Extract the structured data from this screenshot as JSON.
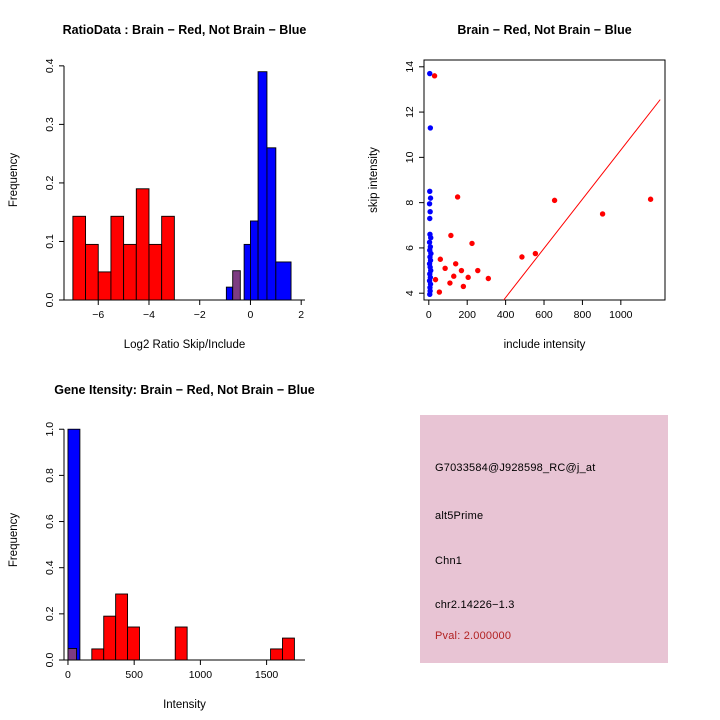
{
  "colors": {
    "red": "#ff0000",
    "blue": "#0000ff",
    "purple": "#7d3c82",
    "axis": "#000000",
    "info_box_bg": "#e8c4d4",
    "pval_text": "#b22222"
  },
  "chart_data": [
    {
      "type": "bar",
      "subtype": "histogram",
      "title": "RatioData : Brain − Red, Not Brain − Blue",
      "xlabel": "Log2 Ratio Skip/Include",
      "ylabel": "Frequency",
      "xlim": [
        -7.35,
        2.15
      ],
      "ylim": [
        0,
        0.41
      ],
      "xticks": [
        -6,
        -4,
        -2,
        0,
        2
      ],
      "xtick_labels": [
        "−6",
        "−4",
        "−2",
        "0",
        "2"
      ],
      "yticks": [
        0,
        0.1,
        0.2,
        0.3,
        0.4
      ],
      "ytick_labels": [
        "0.0",
        "0.1",
        "0.2",
        "0.3",
        "0.4"
      ],
      "grid": false,
      "legend": "none",
      "bars": [
        [
          -7.0,
          -6.5,
          0.143,
          "red"
        ],
        [
          -6.5,
          -6.0,
          0.095,
          "red"
        ],
        [
          -6.0,
          -5.5,
          0.048,
          "red"
        ],
        [
          -5.5,
          -5.0,
          0.143,
          "red"
        ],
        [
          -5.0,
          -4.5,
          0.095,
          "red"
        ],
        [
          -4.5,
          -4.0,
          0.19,
          "red"
        ],
        [
          -4.0,
          -3.5,
          0.095,
          "red"
        ],
        [
          -3.5,
          -3.0,
          0.143,
          "red"
        ],
        [
          -0.95,
          -0.7,
          0.022,
          "blue"
        ],
        [
          -0.7,
          -0.4,
          0.05,
          "purple"
        ],
        [
          -0.25,
          0.0,
          0.095,
          "blue"
        ],
        [
          0.0,
          0.3,
          0.135,
          "blue"
        ],
        [
          0.3,
          0.65,
          0.39,
          "blue"
        ],
        [
          0.65,
          1.0,
          0.26,
          "blue"
        ],
        [
          1.0,
          1.6,
          0.065,
          "blue"
        ]
      ]
    },
    {
      "type": "scatter",
      "title": "Brain − Red, Not Brain − Blue",
      "xlabel": "include intensity",
      "ylabel": "skip intensity",
      "xlim": [
        -25,
        1230
      ],
      "ylim": [
        3.7,
        14.3
      ],
      "xticks": [
        0,
        200,
        400,
        600,
        800,
        1000
      ],
      "xtick_labels": [
        "0",
        "200",
        "400",
        "600",
        "800",
        "1000"
      ],
      "yticks": [
        4,
        6,
        8,
        10,
        12,
        14
      ],
      "ytick_labels": [
        "4",
        "6",
        "8",
        "10",
        "12",
        "14"
      ],
      "grid": false,
      "box": true,
      "legend": "none",
      "series": [
        {
          "name": "Not Brain",
          "color": "blue",
          "points": [
            [
              5,
              13.7
            ],
            [
              8,
              11.3
            ],
            [
              5,
              8.5
            ],
            [
              9,
              8.2
            ],
            [
              4,
              7.95
            ],
            [
              7,
              7.6
            ],
            [
              5,
              7.3
            ],
            [
              6,
              6.6
            ],
            [
              10,
              6.45
            ],
            [
              4,
              6.25
            ],
            [
              8,
              6.05
            ],
            [
              5,
              5.9
            ],
            [
              11,
              5.75
            ],
            [
              6,
              5.6
            ],
            [
              9,
              5.45
            ],
            [
              4,
              5.3
            ],
            [
              7,
              5.15
            ],
            [
              10,
              5.0
            ],
            [
              5,
              4.85
            ],
            [
              8,
              4.7
            ],
            [
              4,
              4.55
            ],
            [
              9,
              4.4
            ],
            [
              6,
              4.25
            ],
            [
              7,
              4.1
            ],
            [
              5,
              3.95
            ]
          ]
        },
        {
          "name": "Brain",
          "color": "red",
          "points": [
            [
              30,
              13.6
            ],
            [
              150,
              8.25
            ],
            [
              655,
              8.1
            ],
            [
              1155,
              8.15
            ],
            [
              905,
              7.5
            ],
            [
              115,
              6.55
            ],
            [
              225,
              6.2
            ],
            [
              555,
              5.75
            ],
            [
              485,
              5.6
            ],
            [
              60,
              5.5
            ],
            [
              140,
              5.3
            ],
            [
              85,
              5.1
            ],
            [
              170,
              5.0
            ],
            [
              255,
              5.0
            ],
            [
              130,
              4.75
            ],
            [
              205,
              4.7
            ],
            [
              310,
              4.65
            ],
            [
              110,
              4.45
            ],
            [
              180,
              4.3
            ],
            [
              35,
              4.6
            ],
            [
              55,
              4.05
            ]
          ]
        }
      ],
      "line": {
        "x": [
          390,
          1205
        ],
        "y": [
          3.7,
          12.55
        ],
        "color": "red"
      }
    },
    {
      "type": "bar",
      "subtype": "histogram",
      "title": "Gene Itensity: Brain − Red, Not Brain − Blue",
      "xlabel": "Intensity",
      "ylabel": "Frequency",
      "xlim": [
        -30,
        1790
      ],
      "ylim": [
        0,
        1.04
      ],
      "xticks": [
        0,
        500,
        1000,
        1500
      ],
      "xtick_labels": [
        "0",
        "500",
        "1000",
        "1500"
      ],
      "yticks": [
        0,
        0.2,
        0.4,
        0.6,
        0.8,
        1.0
      ],
      "ytick_labels": [
        "0.0",
        "0.2",
        "0.4",
        "0.6",
        "0.8",
        "1.0"
      ],
      "grid": false,
      "legend": "none",
      "bars": [
        [
          0,
          90,
          1.0,
          "blue"
        ],
        [
          0,
          65,
          0.05,
          "purple"
        ],
        [
          180,
          270,
          0.048,
          "red"
        ],
        [
          270,
          360,
          0.19,
          "red"
        ],
        [
          360,
          450,
          0.286,
          "red"
        ],
        [
          450,
          540,
          0.143,
          "red"
        ],
        [
          810,
          900,
          0.143,
          "red"
        ],
        [
          1530,
          1620,
          0.048,
          "red"
        ],
        [
          1620,
          1710,
          0.095,
          "red"
        ]
      ]
    }
  ],
  "info_box": {
    "probe_id": "G7033584@J928598_RC@j_at",
    "splice_type": "alt5Prime",
    "gene": "Chn1",
    "location": "chr2.14226−1.3",
    "pval": "Pval: 2.000000"
  }
}
